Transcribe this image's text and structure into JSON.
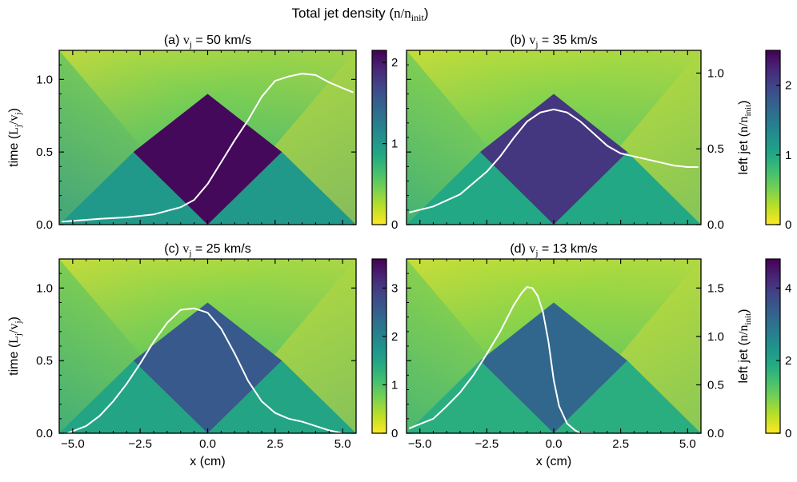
{
  "figure": {
    "title_prefix": "Total jet density (",
    "title_n": "n",
    "title_slash": "/",
    "title_n2": "n",
    "title_sub": "init",
    "title_suffix": ")"
  },
  "chart_data": [
    {
      "type": "heatmap",
      "panel": "(a)",
      "title_label": "(a)",
      "title_v": "v",
      "title_sub": "j",
      "title_value": " = 50 km/s",
      "xlabel": "",
      "ylabel_show": true,
      "right_axis_show": false,
      "xlim": [
        -5.5,
        5.5
      ],
      "ylim": [
        0.0,
        1.2
      ],
      "xticks": [
        -5.0,
        -2.5,
        0.0,
        2.5,
        5.0
      ],
      "xtick_labels": [
        "",
        "",
        "",
        "",
        ""
      ],
      "yticks": [
        0.0,
        0.5,
        1.0
      ],
      "ytick_labels": [
        "0.0",
        "0.5",
        "1.0"
      ],
      "colorbar": {
        "min": 0,
        "max": 2.15,
        "ticks": [
          0,
          1,
          2
        ],
        "tick_labels": [
          "0",
          "1",
          "2"
        ],
        "colormap": "viridis_r"
      },
      "density_regions": {
        "outside": 0.0,
        "single_jet": 1.0,
        "overlap": 2.1,
        "cross_time": 0.5
      },
      "overlay_line": {
        "name": "left jet",
        "color": "#ffffff",
        "x": [
          -5.4,
          -4.0,
          -3.0,
          -2.0,
          -1.0,
          -0.5,
          0.0,
          0.5,
          1.0,
          1.5,
          2.0,
          2.5,
          3.0,
          3.5,
          4.0,
          4.5,
          5.0,
          5.4
        ],
        "y": [
          0.02,
          0.04,
          0.05,
          0.07,
          0.12,
          0.17,
          0.28,
          0.43,
          0.58,
          0.72,
          0.88,
          0.99,
          1.02,
          1.04,
          1.03,
          0.98,
          0.94,
          0.91
        ]
      }
    },
    {
      "type": "heatmap",
      "panel": "(b)",
      "title_label": "(b)",
      "title_v": "v",
      "title_sub": "j",
      "title_value": " = 35 km/s",
      "xlabel": "",
      "ylabel_show": false,
      "right_axis_show": true,
      "xlim": [
        -5.5,
        5.5
      ],
      "ylim": [
        0.0,
        1.2
      ],
      "xticks": [
        -5.0,
        -2.5,
        0.0,
        2.5,
        5.0
      ],
      "xtick_labels": [
        "",
        "",
        "",
        "",
        ""
      ],
      "yticks": [
        0.0,
        0.5,
        1.0
      ],
      "right_ylim": [
        0.0,
        1.15
      ],
      "right_yticks": [
        0.0,
        0.5,
        1.0
      ],
      "right_ytick_labels": [
        "0.0",
        "0.5",
        "1.0"
      ],
      "colorbar": {
        "min": 0,
        "max": 2.5,
        "ticks": [
          0,
          1,
          2
        ],
        "tick_labels": [
          "0",
          "1",
          "2"
        ],
        "colormap": "viridis_r"
      },
      "density_regions": {
        "outside": 0.0,
        "single_jet": 1.0,
        "overlap": 2.1,
        "cross_time": 0.5
      },
      "overlay_line": {
        "name": "left jet",
        "color": "#ffffff",
        "x": [
          -5.4,
          -4.5,
          -3.5,
          -2.5,
          -2.0,
          -1.5,
          -1.0,
          -0.5,
          0.0,
          0.5,
          1.0,
          1.5,
          2.0,
          2.5,
          3.0,
          3.5,
          4.0,
          4.5,
          5.0,
          5.4
        ],
        "y": [
          0.08,
          0.12,
          0.2,
          0.35,
          0.45,
          0.57,
          0.68,
          0.74,
          0.76,
          0.74,
          0.68,
          0.6,
          0.52,
          0.47,
          0.45,
          0.43,
          0.41,
          0.39,
          0.38,
          0.38
        ]
      }
    },
    {
      "type": "heatmap",
      "panel": "(c)",
      "title_label": "(c)",
      "title_v": "v",
      "title_sub": "j",
      "title_value": " = 25 km/s",
      "xlabel": "x (cm)",
      "ylabel_show": true,
      "right_axis_show": false,
      "xlim": [
        -5.5,
        5.5
      ],
      "ylim": [
        0.0,
        1.2
      ],
      "xticks": [
        -5.0,
        -2.5,
        0.0,
        2.5,
        5.0
      ],
      "xtick_labels": [
        "−5.0",
        "−2.5",
        "0.0",
        "2.5",
        "5.0"
      ],
      "yticks": [
        0.0,
        0.5,
        1.0
      ],
      "ytick_labels": [
        "0.0",
        "0.5",
        "1.0"
      ],
      "colorbar": {
        "min": 0,
        "max": 3.6,
        "ticks": [
          0,
          1,
          2,
          3
        ],
        "tick_labels": [
          "0",
          "1",
          "2",
          "3"
        ],
        "colormap": "viridis_r"
      },
      "density_regions": {
        "outside": 0.0,
        "single_jet": 1.5,
        "overlap": 2.6,
        "cross_time": 0.5
      },
      "overlay_line": {
        "name": "left jet",
        "color": "#ffffff",
        "x": [
          -5.2,
          -4.5,
          -4.0,
          -3.5,
          -3.0,
          -2.5,
          -2.0,
          -1.5,
          -1.0,
          -0.5,
          0.0,
          0.5,
          1.0,
          1.5,
          2.0,
          2.5,
          3.0,
          3.5,
          4.0,
          4.5,
          5.0
        ],
        "y": [
          0.0,
          0.05,
          0.12,
          0.22,
          0.34,
          0.48,
          0.63,
          0.76,
          0.85,
          0.86,
          0.83,
          0.72,
          0.55,
          0.36,
          0.22,
          0.14,
          0.1,
          0.08,
          0.05,
          0.02,
          0.0
        ]
      }
    },
    {
      "type": "heatmap",
      "panel": "(d)",
      "title_label": "(d)",
      "title_v": "v",
      "title_sub": "j",
      "title_value": " = 13 km/s",
      "xlabel": "x (cm)",
      "ylabel_show": false,
      "right_axis_show": true,
      "xlim": [
        -5.5,
        5.5
      ],
      "ylim": [
        0.0,
        1.2
      ],
      "xticks": [
        -5.0,
        -2.5,
        0.0,
        2.5,
        5.0
      ],
      "xtick_labels": [
        "−5.0",
        "−2.5",
        "0.0",
        "2.5",
        "5.0"
      ],
      "yticks": [
        0.0,
        0.5,
        1.0
      ],
      "right_ylim": [
        0.0,
        1.8
      ],
      "right_yticks": [
        0.0,
        0.5,
        1.0,
        1.5
      ],
      "right_ytick_labels": [
        "0.0",
        "0.5",
        "1.0",
        "1.5"
      ],
      "colorbar": {
        "min": 0,
        "max": 4.8,
        "ticks": [
          0,
          2,
          4
        ],
        "tick_labels": [
          "0",
          "2",
          "4"
        ],
        "colormap": "viridis_r"
      },
      "density_regions": {
        "outside": 0.0,
        "single_jet": 1.8,
        "overlap": 3.2,
        "cross_time": 0.5
      },
      "overlay_line": {
        "name": "left jet",
        "color": "#ffffff",
        "x": [
          -5.4,
          -4.5,
          -4.0,
          -3.5,
          -3.0,
          -2.5,
          -2.0,
          -1.5,
          -1.2,
          -1.0,
          -0.8,
          -0.6,
          -0.4,
          -0.2,
          0.0,
          0.2,
          0.5,
          0.8,
          1.0,
          1.5
        ],
        "y": [
          0.05,
          0.15,
          0.28,
          0.42,
          0.6,
          0.82,
          1.05,
          1.32,
          1.45,
          1.51,
          1.5,
          1.42,
          1.25,
          0.95,
          0.55,
          0.28,
          0.1,
          0.03,
          0.0,
          0.0
        ]
      }
    }
  ],
  "labels": {
    "time_label_main": "time (",
    "time_L": "L",
    "time_sub_j": "j",
    "time_slash": "/",
    "time_v": "v",
    "time_sub_j2": "j",
    "time_suffix": ")",
    "right_label_main": "left jet (",
    "right_n": "n",
    "right_slash": "/",
    "right_n2": "n",
    "right_sub": "init",
    "right_suffix": ")"
  }
}
